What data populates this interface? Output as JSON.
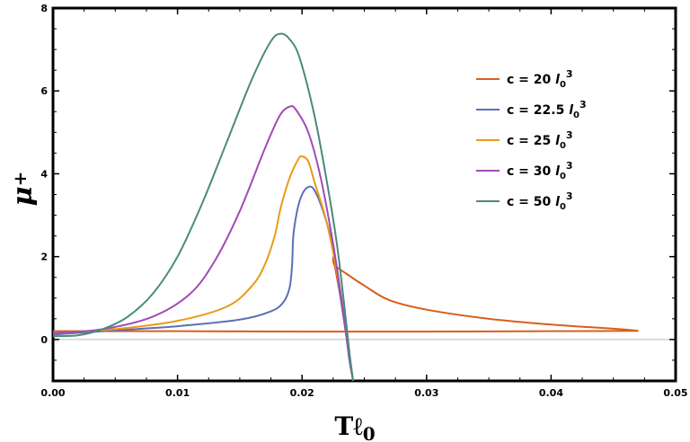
{
  "chart_data": {
    "type": "line",
    "xlabel": "Tℓ",
    "xlabel_sub": "0",
    "ylabel": "μ",
    "ylabel_sub": "+",
    "xlim": [
      0.0,
      0.05
    ],
    "ylim": [
      -1,
      8
    ],
    "x_ticks": [
      "0.00",
      "0.01",
      "0.02",
      "0.03",
      "0.04",
      "0.05"
    ],
    "y_ticks": [
      "0",
      "2",
      "4",
      "6",
      "8"
    ],
    "legend_position": "top-right",
    "series": [
      {
        "name": "c = 20 l03",
        "label_prefix": "c = 20 ",
        "label_unit": "l",
        "label_sub": "0",
        "label_sup": "3",
        "color": "#D95F1A",
        "segments": [
          [
            [
              0.0,
              0.2
            ],
            [
              0.01,
              0.2
            ],
            [
              0.02,
              0.19
            ],
            [
              0.03,
              0.19
            ],
            [
              0.04,
              0.2
            ],
            [
              0.047,
              0.21
            ]
          ],
          [
            [
              0.047,
              0.21
            ],
            [
              0.045,
              0.26
            ],
            [
              0.04,
              0.36
            ],
            [
              0.035,
              0.5
            ],
            [
              0.03,
              0.72
            ],
            [
              0.027,
              0.95
            ],
            [
              0.025,
              1.3
            ],
            [
              0.0235,
              1.6
            ],
            [
              0.0226,
              1.8
            ],
            [
              0.0225,
              2.0
            ]
          ],
          [
            [
              0.0225,
              2.0
            ],
            [
              0.0228,
              1.5
            ],
            [
              0.0231,
              1.0
            ],
            [
              0.0234,
              0.4
            ],
            [
              0.0236,
              0.0
            ],
            [
              0.0238,
              -0.4
            ],
            [
              0.024,
              -0.8
            ],
            [
              0.0241,
              -1.0
            ]
          ]
        ]
      },
      {
        "name": "c = 22.5 l03",
        "label_prefix": "c = 22.5 ",
        "label_unit": "l",
        "label_sub": "0",
        "label_sup": "3",
        "color": "#5B70B5",
        "segments": [
          [
            [
              0.0,
              0.12
            ],
            [
              0.005,
              0.22
            ],
            [
              0.01,
              0.32
            ],
            [
              0.015,
              0.48
            ],
            [
              0.0175,
              0.68
            ],
            [
              0.0185,
              0.9
            ],
            [
              0.019,
              1.25
            ],
            [
              0.0192,
              1.8
            ],
            [
              0.0193,
              2.5
            ],
            [
              0.0196,
              3.1
            ],
            [
              0.02,
              3.5
            ],
            [
              0.0205,
              3.68
            ],
            [
              0.021,
              3.6
            ],
            [
              0.0218,
              3.0
            ],
            [
              0.0225,
              2.2
            ],
            [
              0.023,
              1.2
            ],
            [
              0.0235,
              0.2
            ],
            [
              0.0238,
              -0.5
            ],
            [
              0.0241,
              -1.0
            ]
          ]
        ]
      },
      {
        "name": "c = 25 l03",
        "label_prefix": "c = 25 ",
        "label_unit": "l",
        "label_sub": "0",
        "label_sup": "3",
        "color": "#E89B19",
        "segments": [
          [
            [
              0.0,
              0.15
            ],
            [
              0.005,
              0.25
            ],
            [
              0.01,
              0.45
            ],
            [
              0.014,
              0.8
            ],
            [
              0.016,
              1.3
            ],
            [
              0.017,
              1.8
            ],
            [
              0.0178,
              2.5
            ],
            [
              0.0183,
              3.2
            ],
            [
              0.019,
              3.9
            ],
            [
              0.0197,
              4.35
            ],
            [
              0.02,
              4.42
            ],
            [
              0.0205,
              4.3
            ],
            [
              0.021,
              3.8
            ],
            [
              0.022,
              2.8
            ],
            [
              0.023,
              1.3
            ],
            [
              0.0235,
              0.3
            ],
            [
              0.0239,
              -0.6
            ],
            [
              0.0241,
              -1.0
            ]
          ]
        ]
      },
      {
        "name": "c = 30 l03",
        "label_prefix": "c = 30 ",
        "label_unit": "l",
        "label_sub": "0",
        "label_sup": "3",
        "color": "#A24BB5",
        "segments": [
          [
            [
              0.0,
              0.15
            ],
            [
              0.004,
              0.25
            ],
            [
              0.008,
              0.55
            ],
            [
              0.011,
              1.1
            ],
            [
              0.013,
              1.9
            ],
            [
              0.015,
              3.1
            ],
            [
              0.017,
              4.6
            ],
            [
              0.0182,
              5.4
            ],
            [
              0.019,
              5.62
            ],
            [
              0.0195,
              5.55
            ],
            [
              0.0205,
              5.0
            ],
            [
              0.0215,
              3.9
            ],
            [
              0.0225,
              2.3
            ],
            [
              0.0232,
              0.9
            ],
            [
              0.0237,
              -0.2
            ],
            [
              0.0241,
              -1.0
            ]
          ]
        ]
      },
      {
        "name": "c = 50 l03",
        "label_prefix": "c = 50 ",
        "label_unit": "l",
        "label_sub": "0",
        "label_sup": "3",
        "color": "#4A8B78",
        "segments": [
          [
            [
              0.0,
              0.08
            ],
            [
              0.002,
              0.1
            ],
            [
              0.004,
              0.25
            ],
            [
              0.006,
              0.55
            ],
            [
              0.008,
              1.1
            ],
            [
              0.01,
              2.0
            ],
            [
              0.012,
              3.3
            ],
            [
              0.014,
              4.8
            ],
            [
              0.016,
              6.3
            ],
            [
              0.0175,
              7.2
            ],
            [
              0.0183,
              7.38
            ],
            [
              0.019,
              7.25
            ],
            [
              0.0198,
              6.8
            ],
            [
              0.021,
              5.4
            ],
            [
              0.022,
              3.8
            ],
            [
              0.0228,
              2.3
            ],
            [
              0.0234,
              0.8
            ],
            [
              0.0238,
              -0.3
            ],
            [
              0.0241,
              -1.0
            ]
          ]
        ]
      }
    ]
  }
}
